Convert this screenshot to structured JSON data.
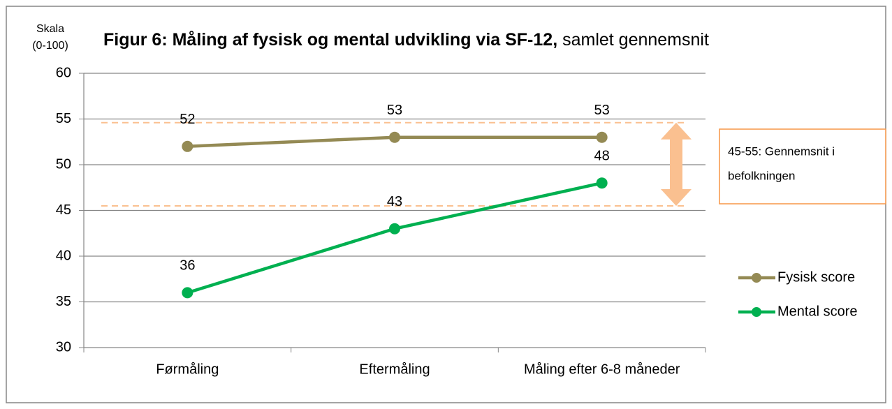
{
  "chart_data": {
    "type": "line",
    "title": {
      "bold": "Figur 6: Måling af fysisk og mental udvikling via SF-12,",
      "regular": " samlet gennemsnit"
    },
    "y_axis_label": [
      "Skala",
      "(0-100)"
    ],
    "categories": [
      "Førmåling",
      "Eftermåling",
      "Måling efter 6-8 måneder"
    ],
    "series": [
      {
        "name": "Fysisk score",
        "color": "#948a54",
        "values": [
          52,
          53,
          53
        ]
      },
      {
        "name": "Mental score",
        "color": "#00b050",
        "values": [
          36,
          43,
          48
        ]
      }
    ],
    "ylim": [
      30,
      60
    ],
    "yticks": [
      30,
      35,
      40,
      45,
      50,
      55,
      60
    ],
    "grid": true,
    "reference_band": {
      "range": [
        45.5,
        54.6
      ],
      "color": "#fac090",
      "annotation": [
        "45-55: Gennemsnit i",
        "befolkningen"
      ]
    }
  }
}
